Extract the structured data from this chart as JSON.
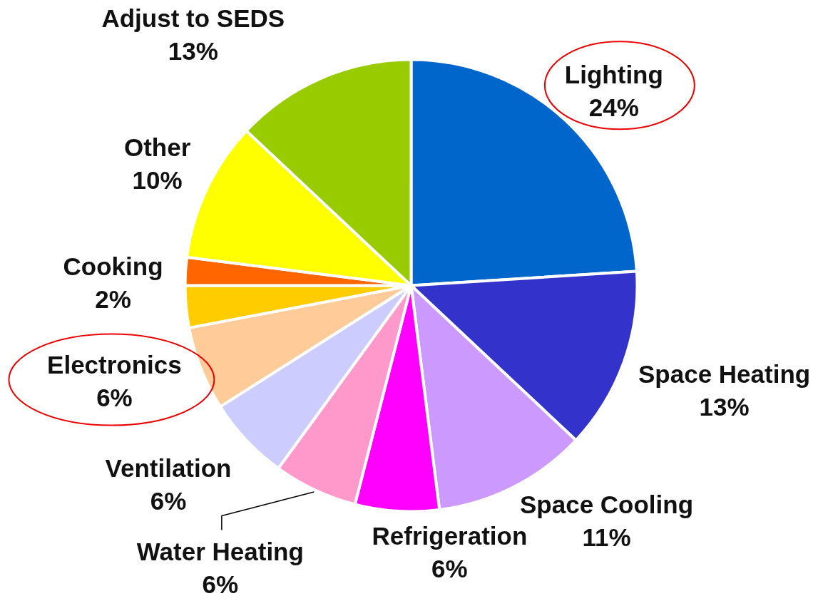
{
  "chart_data": {
    "type": "pie",
    "categories": [
      "Lighting",
      "Space Heating",
      "Space Cooling",
      "Refrigeration",
      "Water Heating",
      "Ventilation",
      "Electronics",
      null,
      "Cooking",
      "Other",
      "Adjust to SEDS"
    ],
    "values": [
      24,
      13,
      11,
      6,
      6,
      6,
      6,
      3,
      2,
      10,
      13
    ],
    "colors": [
      "#0066cc",
      "#3333cc",
      "#cc99ff",
      "#ff00ff",
      "#ff99cc",
      "#ccccff",
      "#ffcc99",
      "#ffcc00",
      "#ff6600",
      "#ffff00",
      "#99cc00"
    ],
    "value_labels": [
      "24%",
      "13%",
      "11%",
      "6%",
      "6%",
      "6%",
      "6%",
      null,
      "2%",
      "10%",
      "13%"
    ]
  }
}
